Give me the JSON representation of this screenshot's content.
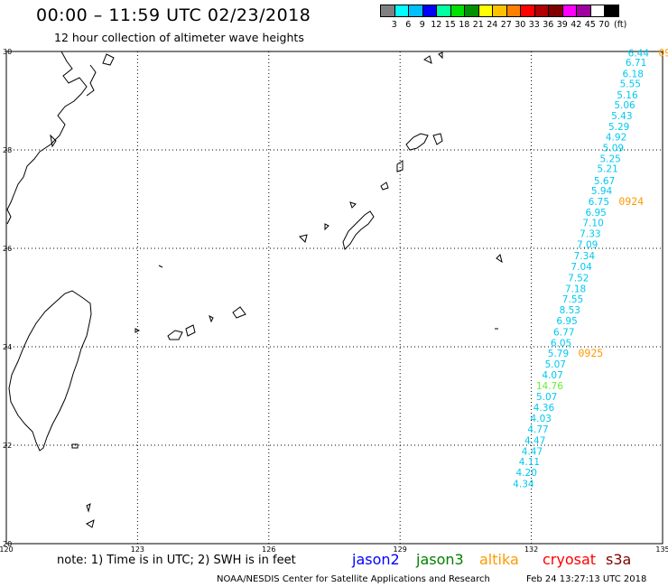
{
  "header": {
    "title": "00:00 – 11:59 UTC 02/23/2018",
    "subtitle": "12 hour collection of altimeter wave heights"
  },
  "legend": {
    "colors": [
      "#808080",
      "#00ffff",
      "#00bfff",
      "#0000ff",
      "#00ffa0",
      "#00e000",
      "#009000",
      "#ffff00",
      "#ffc000",
      "#ff8000",
      "#ff0000",
      "#b00000",
      "#800000",
      "#ff00ff",
      "#a000a0",
      "#ffffff",
      "#000000"
    ],
    "ticks": [
      "3",
      "6",
      "9",
      "12",
      "15",
      "18",
      "21",
      "24",
      "27",
      "30",
      "33",
      "36",
      "39",
      "42",
      "45",
      "70"
    ],
    "unit": "(ft)"
  },
  "map": {
    "lon_ticks": [
      "120",
      "123",
      "126",
      "129",
      "132",
      "135"
    ],
    "lat_ticks": [
      "30",
      "28",
      "26",
      "24",
      "22",
      "20"
    ],
    "extent": {
      "lon": [
        120,
        135
      ],
      "lat": [
        20,
        30
      ]
    }
  },
  "track": {
    "color_cyan": "#00c8f0",
    "color_green": "#66ee33",
    "color_time": "#ff9900",
    "labels": [
      {
        "lat": 29.97,
        "v": "6.44"
      },
      {
        "lat": 29.78,
        "v": "6.71"
      },
      {
        "lat": 29.55,
        "v": "6.18"
      },
      {
        "lat": 29.35,
        "v": "5.55"
      },
      {
        "lat": 29.12,
        "v": "5.16"
      },
      {
        "lat": 28.92,
        "v": "5.06"
      },
      {
        "lat": 28.7,
        "v": "5.43"
      },
      {
        "lat": 28.48,
        "v": "5.29"
      },
      {
        "lat": 28.27,
        "v": "4.92"
      },
      {
        "lat": 28.05,
        "v": "5.09"
      },
      {
        "lat": 27.83,
        "v": "5.25"
      },
      {
        "lat": 27.62,
        "v": "5.21"
      },
      {
        "lat": 27.38,
        "v": "5.67"
      },
      {
        "lat": 27.17,
        "v": "5.94"
      },
      {
        "lat": 26.95,
        "v": "6.75"
      },
      {
        "lat": 26.73,
        "v": "6.95"
      },
      {
        "lat": 26.52,
        "v": "7.10"
      },
      {
        "lat": 26.3,
        "v": "7.33"
      },
      {
        "lat": 26.08,
        "v": "7.09"
      },
      {
        "lat": 25.85,
        "v": "7.34"
      },
      {
        "lat": 25.63,
        "v": "7.04"
      },
      {
        "lat": 25.4,
        "v": "7.52"
      },
      {
        "lat": 25.18,
        "v": "7.18"
      },
      {
        "lat": 24.97,
        "v": "7.55"
      },
      {
        "lat": 24.75,
        "v": "8.53"
      },
      {
        "lat": 24.53,
        "v": "6.95"
      },
      {
        "lat": 24.3,
        "v": "6.77"
      },
      {
        "lat": 24.08,
        "v": "6.05"
      },
      {
        "lat": 23.87,
        "v": "5.79"
      },
      {
        "lat": 23.65,
        "v": "5.07"
      },
      {
        "lat": 23.43,
        "v": "4.07"
      },
      {
        "lat": 23.21,
        "v": "14.76",
        "green": true
      },
      {
        "lat": 22.99,
        "v": "5.07"
      },
      {
        "lat": 22.77,
        "v": "4.36"
      },
      {
        "lat": 22.55,
        "v": "4.03"
      },
      {
        "lat": 22.33,
        "v": "4.77"
      },
      {
        "lat": 22.1,
        "v": "4.47"
      },
      {
        "lat": 21.88,
        "v": "4.47"
      },
      {
        "lat": 21.67,
        "v": "4.11"
      },
      {
        "lat": 21.45,
        "v": "4.20"
      },
      {
        "lat": 21.22,
        "v": "4.34"
      }
    ],
    "times": [
      {
        "lat": 29.97,
        "v": "09"
      },
      {
        "lat": 26.95,
        "v": "0924"
      },
      {
        "lat": 23.87,
        "v": "0925"
      }
    ]
  },
  "footer": {
    "note": "note: 1) Time is in UTC; 2) SWH is in feet",
    "satellites": [
      {
        "name": "jason2",
        "color": "#0000ff"
      },
      {
        "name": "jason3",
        "color": "#008000"
      },
      {
        "name": "altika",
        "color": "#ff9900"
      },
      {
        "name": "cryosat",
        "color": "#ff0000"
      },
      {
        "name": "s3a",
        "color": "#800000"
      }
    ],
    "credit": "NOAA/NESDIS Center for Satellite Applications and Research",
    "generated": "Feb 24 13:27:13 UTC 2018"
  }
}
